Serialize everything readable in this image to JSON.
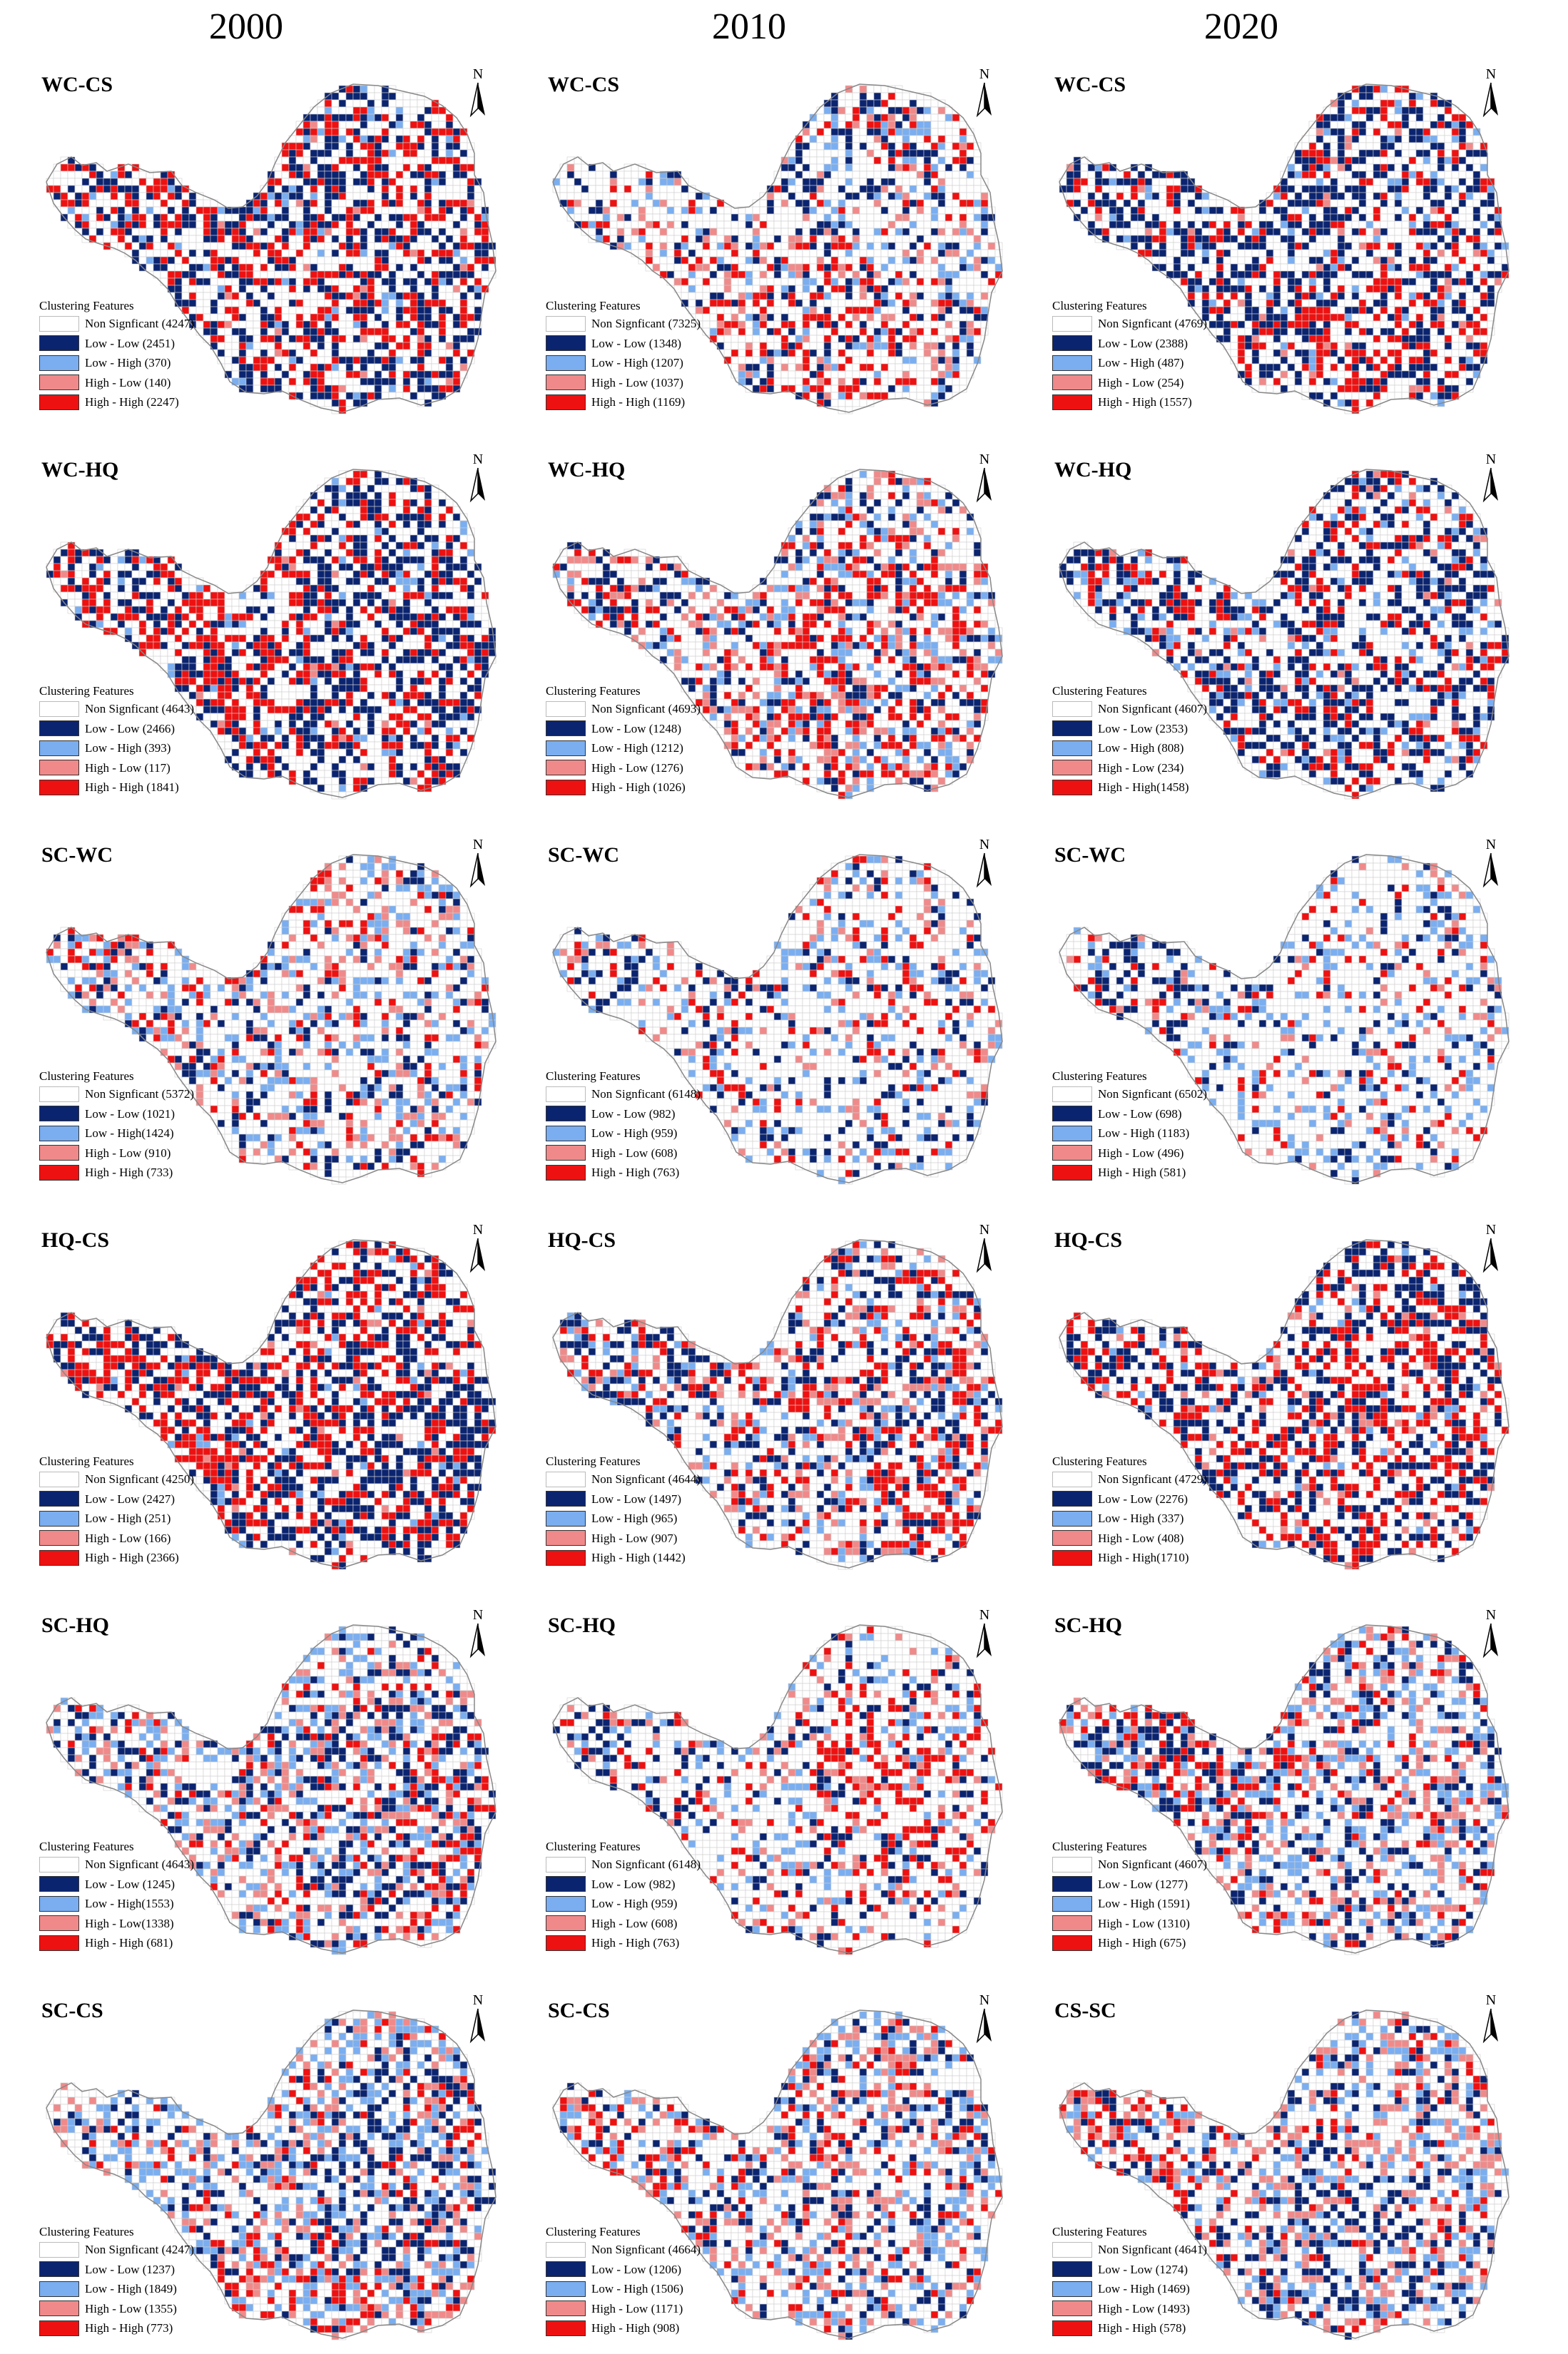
{
  "years": [
    "2000",
    "2010",
    "2020"
  ],
  "legend_title": "Clustering Features",
  "class_colors": {
    "ns": "#ffffff",
    "ll": "#0b2470",
    "lh": "#7aaef0",
    "hl": "#f08a8a",
    "hh": "#ee1111"
  },
  "panels": [
    {
      "title": "WC-CS",
      "year": "2000",
      "entries": [
        {
          "label": "Non Signficant (4247)"
        },
        {
          "label": "Low - Low  (2451)"
        },
        {
          "label": "Low - High (370)"
        },
        {
          "label": "High - Low (140)"
        },
        {
          "label": "High - High (2247)"
        }
      ]
    },
    {
      "title": "WC-CS",
      "year": "2010",
      "entries": [
        {
          "label": "Non Signficant (7325)"
        },
        {
          "label": "Low - Low  (1348)"
        },
        {
          "label": "Low - High (1207)"
        },
        {
          "label": "High - Low  (1037)"
        },
        {
          "label": "High - High  (1169)"
        }
      ]
    },
    {
      "title": "WC-CS",
      "year": "2020",
      "entries": [
        {
          "label": "Non Signficant  (4769)"
        },
        {
          "label": "Low - Low  (2388)"
        },
        {
          "label": "Low - High (487)"
        },
        {
          "label": "High - Low  (254)"
        },
        {
          "label": "High - High (1557)"
        }
      ]
    },
    {
      "title": "WC-HQ",
      "year": "2000",
      "entries": [
        {
          "label": "Non Signficant (4643)"
        },
        {
          "label": "Low - Low  (2466)"
        },
        {
          "label": "Low - High  (393)"
        },
        {
          "label": "High - Low  (117)"
        },
        {
          "label": "High - High (1841)"
        }
      ]
    },
    {
      "title": "WC-HQ",
      "year": "2010",
      "entries": [
        {
          "label": "Non Signficant  (4693)"
        },
        {
          "label": "Low - Low  (1248)"
        },
        {
          "label": "Low - High  (1212)"
        },
        {
          "label": "High - Low  (1276)"
        },
        {
          "label": "High - High  (1026)"
        }
      ]
    },
    {
      "title": "WC-HQ",
      "year": "2020",
      "entries": [
        {
          "label": "Non Signficant  (4607)"
        },
        {
          "label": "Low - Low  (2353)"
        },
        {
          "label": "Low - High  (808)"
        },
        {
          "label": "High - Low  (234)"
        },
        {
          "label": "High - High(1458)"
        }
      ]
    },
    {
      "title": "SC-WC",
      "year": "2000",
      "entries": [
        {
          "label": "Non Signficant (5372)"
        },
        {
          "label": "Low - Low  (1021)"
        },
        {
          "label": "Low - High(1424)"
        },
        {
          "label": "High - Low  (910)"
        },
        {
          "label": "High - High  (733)"
        }
      ]
    },
    {
      "title": "SC-WC",
      "year": "2010",
      "entries": [
        {
          "label": "Non Signficant  (6148)"
        },
        {
          "label": "Low - Low  (982)"
        },
        {
          "label": "Low - High  (959)"
        },
        {
          "label": "High - Low  (608)"
        },
        {
          "label": "High - High  (763)"
        }
      ]
    },
    {
      "title": "SC-WC",
      "year": "2020",
      "entries": [
        {
          "label": "Non Signficant  (6502)"
        },
        {
          "label": "Low - Low  (698)"
        },
        {
          "label": "Low - High (1183)"
        },
        {
          "label": "High - Low  (496)"
        },
        {
          "label": "High - High  (581)"
        }
      ]
    },
    {
      "title": "HQ-CS",
      "year": "2000",
      "entries": [
        {
          "label": "Non Signficant (4250)"
        },
        {
          "label": "Low - Low  (2427)"
        },
        {
          "label": "Low - High  (251)"
        },
        {
          "label": "High - Low  (166)"
        },
        {
          "label": "High - High  (2366)"
        }
      ]
    },
    {
      "title": "HQ-CS",
      "year": "2010",
      "entries": [
        {
          "label": "Non Signficant  (4644)"
        },
        {
          "label": "Low - Low  (1497)"
        },
        {
          "label": "Low - High  (965)"
        },
        {
          "label": "High - Low  (907)"
        },
        {
          "label": "High - High  (1442)"
        }
      ]
    },
    {
      "title": "HQ-CS",
      "year": "2020",
      "entries": [
        {
          "label": "Non Signficant  (4729)"
        },
        {
          "label": "Low - Low  (2276)"
        },
        {
          "label": "Low - High  (337)"
        },
        {
          "label": "High - Low  (408)"
        },
        {
          "label": "High - High(1710)"
        }
      ]
    },
    {
      "title": "SC-HQ",
      "year": "2000",
      "entries": [
        {
          "label": "Non Signficant (4643)"
        },
        {
          "label": "Low - Low  (1245)"
        },
        {
          "label": "Low - High(1553)"
        },
        {
          "label": "High - Low(1338)"
        },
        {
          "label": "High - High  (681)"
        }
      ]
    },
    {
      "title": "SC-HQ",
      "year": "2010",
      "entries": [
        {
          "label": "Non Signficant  (6148)"
        },
        {
          "label": "Low - Low  (982)"
        },
        {
          "label": "Low - High  (959)"
        },
        {
          "label": "High - Low  (608)"
        },
        {
          "label": "High - High  (763)"
        }
      ]
    },
    {
      "title": "SC-HQ",
      "year": "2020",
      "entries": [
        {
          "label": "Non Signficant  (4607)"
        },
        {
          "label": "Low - Low  (1277)"
        },
        {
          "label": "Low - High  (1591)"
        },
        {
          "label": "High - Low  (1310)"
        },
        {
          "label": "High - High  (675)"
        }
      ]
    },
    {
      "title": "SC-CS",
      "year": "2000",
      "entries": [
        {
          "label": "Non Signficant (4247)"
        },
        {
          "label": "Low - Low  (1237)"
        },
        {
          "label": "Low - High  (1849)"
        },
        {
          "label": "High - Low  (1355)"
        },
        {
          "label": "High - High  (773)"
        }
      ]
    },
    {
      "title": "SC-CS",
      "year": "2010",
      "entries": [
        {
          "label": "Non Signficant  (4664)"
        },
        {
          "label": "Low - Low  (1206)"
        },
        {
          "label": "Low - High  (1506)"
        },
        {
          "label": "High - Low  (1171)"
        },
        {
          "label": "High - High  (908)"
        }
      ]
    },
    {
      "title": "CS-SC",
      "year": "2020",
      "entries": [
        {
          "label": "Non Signficant  (4641)"
        },
        {
          "label": "Low - Low  (1274)"
        },
        {
          "label": "Low - High  (1469)"
        },
        {
          "label": "High - Low  (1493)"
        },
        {
          "label": "High - High  (578)"
        }
      ]
    }
  ]
}
